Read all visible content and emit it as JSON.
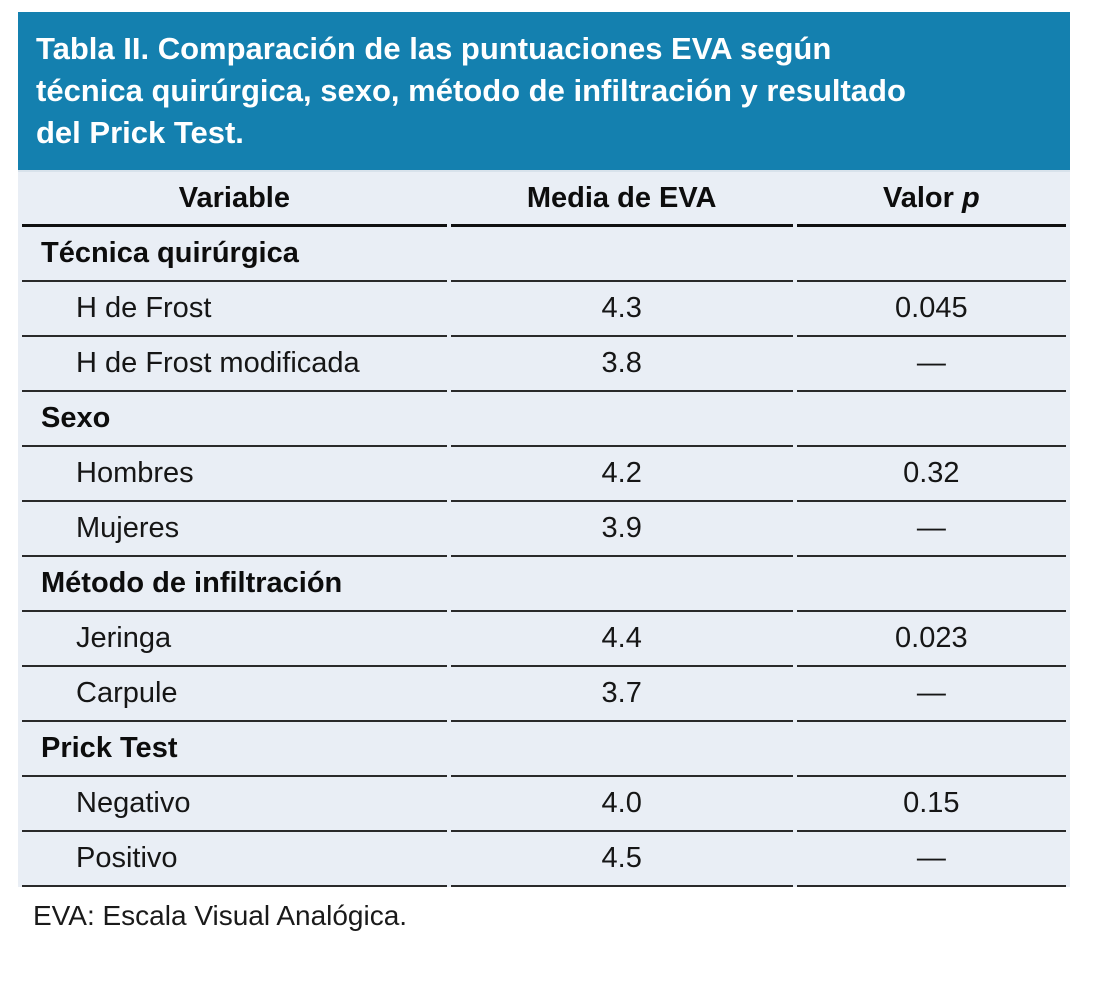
{
  "title": {
    "full": "Tabla II. Comparación de las puntuaciones EVA según técnica quirúrgica, sexo, método de infiltración y resultado del Prick Test.",
    "lines": [
      "Tabla II. Comparación de las puntuaciones EVA según",
      "técnica quirúrgica, sexo, método de infiltración y resultado",
      "del Prick Test."
    ]
  },
  "colors": {
    "title_bg": "#1480AF",
    "title_text": "#FFFFFF",
    "row_bg": "#E9EEF5",
    "rule": "#2A2A2A",
    "body_text": "#161616"
  },
  "table": {
    "columns": [
      {
        "label": "Variable"
      },
      {
        "label": "Media de EVA"
      },
      {
        "label": "Valor",
        "label_italic": "p"
      }
    ],
    "sections": [
      {
        "header": "Técnica quirúrgica",
        "rows": [
          {
            "label": "H de Frost",
            "media": "4.3",
            "p": "0.045"
          },
          {
            "label": "H de Frost modificada",
            "media": "3.8",
            "p": "—"
          }
        ]
      },
      {
        "header": "Sexo",
        "rows": [
          {
            "label": "Hombres",
            "media": "4.2",
            "p": "0.32"
          },
          {
            "label": "Mujeres",
            "media": "3.9",
            "p": "—"
          }
        ]
      },
      {
        "header": "Método de infiltración",
        "rows": [
          {
            "label": "Jeringa",
            "media": "4.4",
            "p": "0.023"
          },
          {
            "label": "Carpule",
            "media": "3.7",
            "p": "—"
          }
        ]
      },
      {
        "header": "Prick Test",
        "rows": [
          {
            "label": "Negativo",
            "media": "4.0",
            "p": "0.15"
          },
          {
            "label": "Positivo",
            "media": "4.5",
            "p": "—"
          }
        ]
      }
    ]
  },
  "footnote": "EVA: Escala Visual Analógica."
}
